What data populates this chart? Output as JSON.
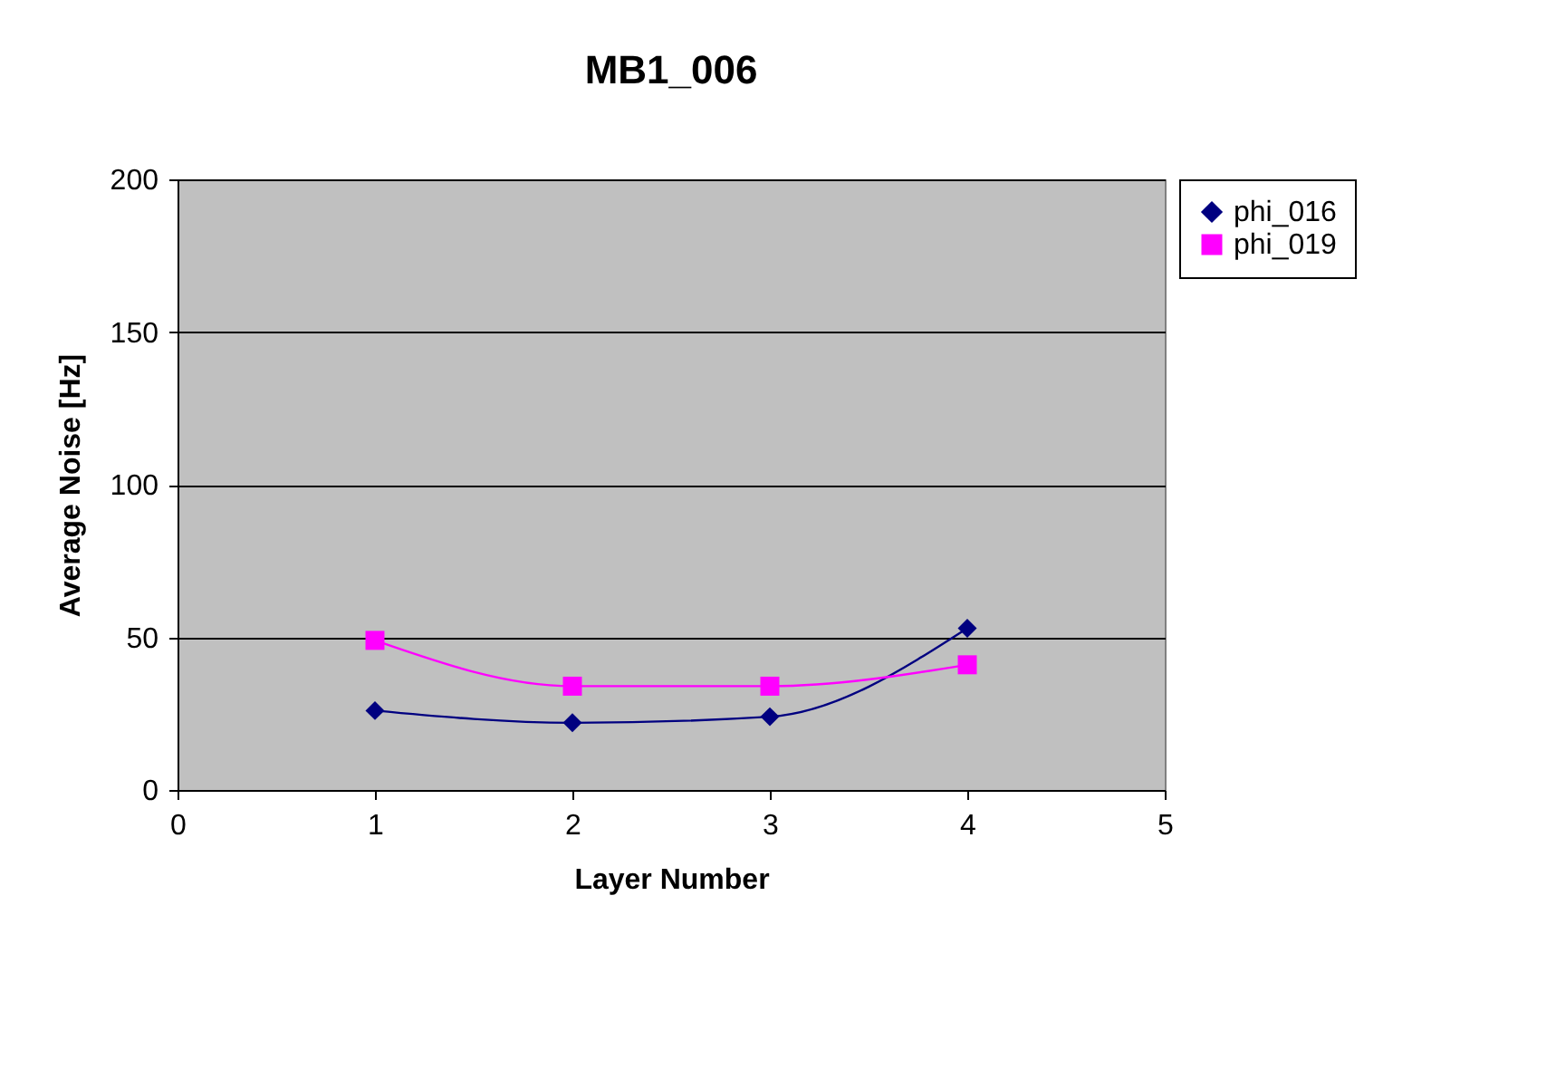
{
  "chart_data": {
    "type": "line",
    "title": "MB1_006",
    "xlabel": "Layer Number",
    "ylabel": "Average Noise [Hz]",
    "x": [
      1,
      2,
      3,
      4
    ],
    "series": [
      {
        "name": "phi_016",
        "color": "#000080",
        "marker": "diamond",
        "values": [
          26,
          22,
          24,
          53
        ]
      },
      {
        "name": "phi_019",
        "color": "#ff00ff",
        "marker": "square",
        "values": [
          49,
          34,
          34,
          41
        ]
      }
    ],
    "xlim": [
      0,
      5
    ],
    "xticks": [
      0,
      1,
      2,
      3,
      4,
      5
    ],
    "ylim": [
      0,
      200
    ],
    "yticks": [
      0,
      50,
      100,
      150,
      200
    ],
    "grid": "y",
    "legend": "right"
  }
}
